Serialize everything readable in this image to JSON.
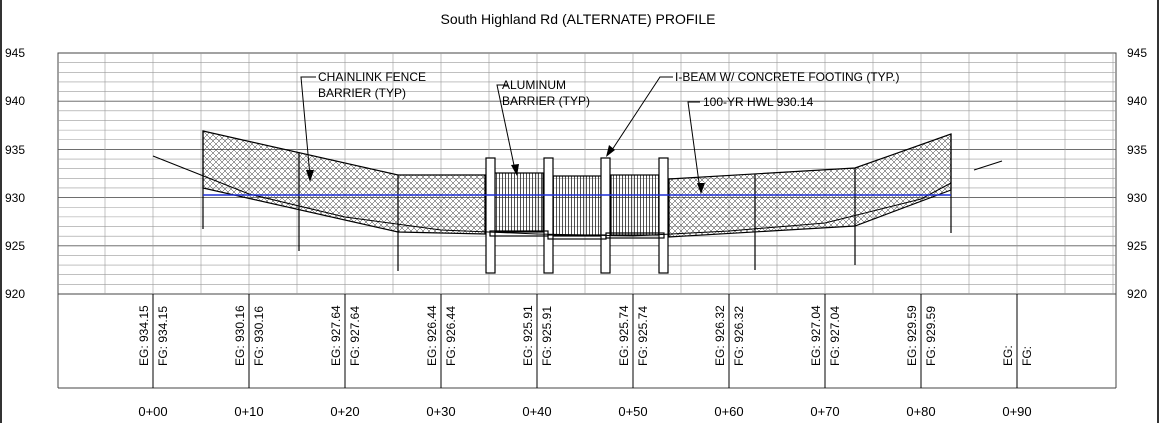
{
  "title": "South Highland Rd (ALTERNATE) PROFILE",
  "elevations": [
    "945",
    "940",
    "935",
    "930",
    "925",
    "920"
  ],
  "stations": [
    "0+00",
    "0+10",
    "0+20",
    "0+30",
    "0+40",
    "0+50",
    "0+60",
    "0+70",
    "0+80",
    "0+90"
  ],
  "station_labels": [
    {
      "eg": "EG: 934.15",
      "fg": "FG: 934.15"
    },
    {
      "eg": "EG: 930.16",
      "fg": "FG: 930.16"
    },
    {
      "eg": "EG: 927.64",
      "fg": "FG: 927.64"
    },
    {
      "eg": "EG: 926.44",
      "fg": "FG: 926.44"
    },
    {
      "eg": "EG: 925.91",
      "fg": "FG: 925.91"
    },
    {
      "eg": "EG: 925.74",
      "fg": "FG: 925.74"
    },
    {
      "eg": "EG: 926.32",
      "fg": "FG: 926.32"
    },
    {
      "eg": "EG: 927.04",
      "fg": "FG: 927.04"
    },
    {
      "eg": "EG: 929.59",
      "fg": "FG: 929.59"
    },
    {
      "eg": "EG:",
      "fg": "FG:"
    }
  ],
  "annotations": {
    "chainlink_line1": "CHAINLINK FENCE",
    "chainlink_line2": "BARRIER (TYP)",
    "aluminum_line1": "ALUMINUM",
    "aluminum_line2": "BARRIER (TYP)",
    "ibeam": "I-BEAM W/ CONCRETE FOOTING (TYP.)",
    "hwl": "100-YR HWL 930.14"
  },
  "colors": {
    "line": "#000000",
    "grid": "#8a8a8a",
    "water": "#1f2fd6"
  }
}
